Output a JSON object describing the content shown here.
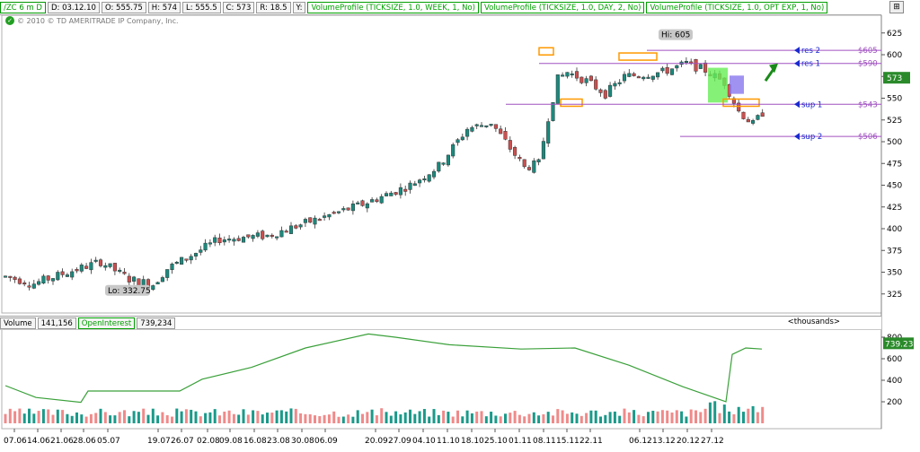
{
  "header": {
    "symbol": "/ZC 6 m D",
    "date": "D: 03.12.10",
    "open": "O: 555.75",
    "high": "H: 574",
    "low": "L: 555.5",
    "close": "C: 573",
    "range": "R: 18.5",
    "y_label": "Y:",
    "studies": [
      "VolumeProfile (TICKSIZE, 1.0, WEEK, 1, No)",
      "VolumeProfile (TICKSIZE, 1.0, DAY, 2, No)",
      "VolumeProfile (TICKSIZE, 1.0, OPT EXP, 1, No)"
    ]
  },
  "watermark": "© 2010 © TD AMERITRADE IP Company, Inc.",
  "annotations": {
    "hi": "Hi: 605",
    "lo": "Lo: 332.75",
    "current_price": "573",
    "levels": [
      {
        "name": "res 2",
        "value": 605,
        "label": "$605"
      },
      {
        "name": "res 1",
        "value": 590,
        "label": "$590"
      },
      {
        "name": "sup 1",
        "value": 543,
        "label": "$543"
      },
      {
        "name": "sup 2",
        "value": 506,
        "label": "$506"
      }
    ]
  },
  "price_axis": {
    "ticks": [
      625,
      600,
      575,
      550,
      525,
      500,
      475,
      450,
      425,
      400,
      375,
      350,
      325
    ]
  },
  "volume_panel": {
    "volume_label": "Volume",
    "volume_value": "141,156",
    "oi_label": "OpenInterest",
    "oi_value": "739,234",
    "units": "<thousands>",
    "oi_current": "739.23",
    "ticks": [
      800,
      600,
      400,
      200
    ]
  },
  "date_axis": [
    "07.06",
    "14.06",
    "21.06",
    "28.06",
    "05.07",
    "19.07",
    "26.07",
    "02.08",
    "09.08",
    "16.08",
    "23.08",
    "30.08",
    "06.09",
    "20.09",
    "27.09",
    "04.10",
    "11.10",
    "18.10",
    "25.10",
    "01.11",
    "08.11",
    "15.11",
    "22.11",
    "06.12",
    "13.12",
    "20.12",
    "27.12"
  ],
  "colors": {
    "up": "#1a8a7e",
    "down": "#cc4f4f",
    "level": "#a050c0",
    "arrow": "#1a2ad0",
    "oi": "#3aa03a",
    "volume_up": "#1a9a8a",
    "volume_down": "#f08a8a"
  }
}
